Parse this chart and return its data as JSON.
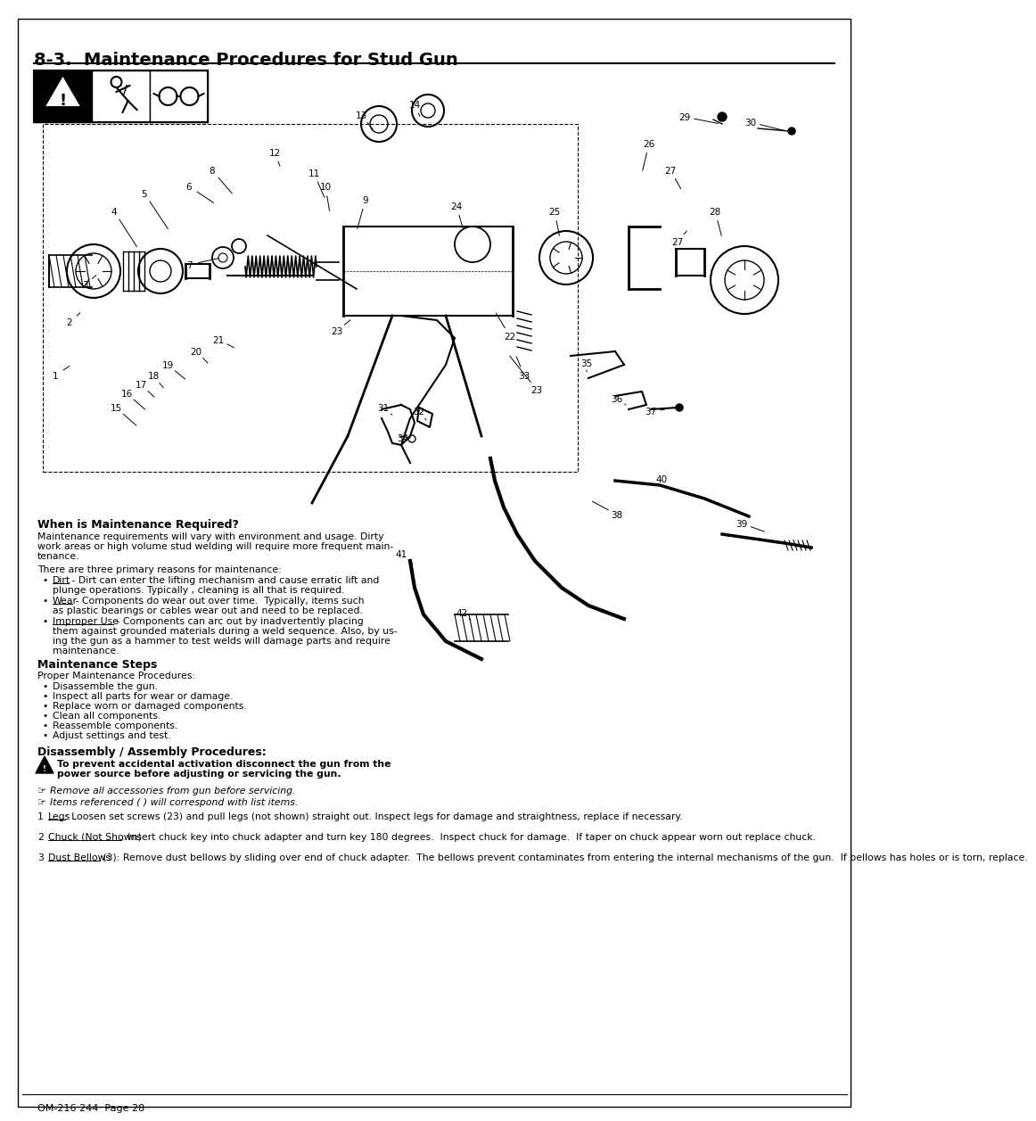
{
  "title": "8-3.  Maintenance Procedures for Stud Gun",
  "page_footer": "OM-216 244  Page 28",
  "background_color": "#ffffff",
  "text_color": "#000000",
  "section_when_title": "When is Maintenance Required?",
  "section_maint_title": "Maintenance Steps",
  "section_disassembly_title": "Disassembly / Assembly Procedures:",
  "section_warning_bold": "To prevent accidental activation disconnect the gun from the\npower source before adjusting or servicing the gun.",
  "section_note1": "Remove all accessories from gun before servicing.",
  "section_note2": "Items referenced ( ) will correspond with list items.",
  "numbered_items": [
    {
      "num": "1",
      "label": "Legs",
      "text": ": Loosen set screws (23) and pull legs (not shown) straight out. Inspect legs for damage and straightness, replace if necessary."
    },
    {
      "num": "2",
      "label": "Chuck (Not Shown)",
      "text": ": Insert chuck key into chuck adapter and turn key 180 degrees.  Inspect chuck for damage.  If taper on chuck appear worn out replace chuck."
    },
    {
      "num": "3",
      "label": "Dust Bellows",
      "text": " (3): Remove dust bellows by sliding over end of chuck adapter.  The bellows prevent contaminates from entering the internal mechanisms of the gun.  If bellows has holes or is torn, replace."
    }
  ]
}
